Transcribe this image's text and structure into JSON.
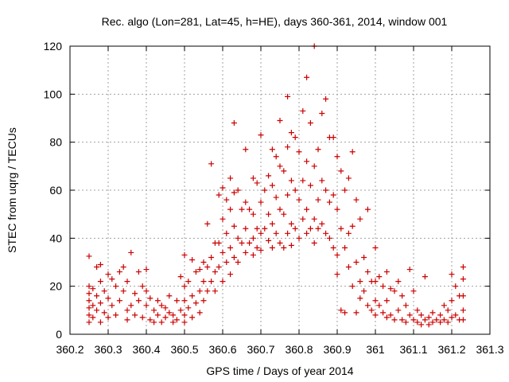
{
  "chart_data": {
    "type": "scatter",
    "title": "Rec. algo (Lon=281, Lat=45, h=HE), days 360-361, 2014, window 001",
    "xlabel": "GPS time / Days of year 2014",
    "ylabel": "STEC from uqrg / TECUs",
    "xlim": [
      360.2,
      361.3
    ],
    "ylim": [
      0,
      120
    ],
    "xticks": [
      360.2,
      360.3,
      360.4,
      360.5,
      360.6,
      360.7,
      360.8,
      360.9,
      361,
      361.1,
      361.2,
      361.3
    ],
    "xtick_labels": [
      "360.2",
      "360.3",
      "360.4",
      "360.5",
      "360.6",
      "360.7",
      "360.8",
      "360.9",
      "361",
      "361.1",
      "361.2",
      "361.3"
    ],
    "yticks": [
      0,
      20,
      40,
      60,
      80,
      100,
      120
    ],
    "ytick_labels": [
      "0",
      "20",
      "40",
      "60",
      "80",
      "100",
      "120"
    ],
    "grid": true,
    "legend": "none",
    "marker": "plus",
    "color": "#cc0000",
    "series": [
      {
        "points": [
          [
            360.25,
            32.5
          ],
          [
            360.25,
            20
          ],
          [
            360.25,
            17
          ],
          [
            360.25,
            14
          ],
          [
            360.25,
            11
          ],
          [
            360.25,
            8
          ],
          [
            360.25,
            5
          ],
          [
            360.26,
            19
          ],
          [
            360.26,
            12
          ],
          [
            360.26,
            7
          ],
          [
            360.27,
            28
          ],
          [
            360.27,
            16
          ],
          [
            360.27,
            10
          ],
          [
            360.28,
            29
          ],
          [
            360.28,
            22
          ],
          [
            360.28,
            13
          ],
          [
            360.28,
            5
          ],
          [
            360.29,
            18
          ],
          [
            360.29,
            9
          ],
          [
            360.3,
            25
          ],
          [
            360.3,
            15
          ],
          [
            360.3,
            7
          ],
          [
            360.31,
            23
          ],
          [
            360.31,
            12
          ],
          [
            360.32,
            20
          ],
          [
            360.32,
            8
          ],
          [
            360.33,
            26
          ],
          [
            360.33,
            14
          ],
          [
            360.34,
            28
          ],
          [
            360.34,
            18
          ],
          [
            360.35,
            22
          ],
          [
            360.35,
            10
          ],
          [
            360.35,
            6
          ],
          [
            360.36,
            34
          ],
          [
            360.36,
            12
          ],
          [
            360.37,
            17
          ],
          [
            360.37,
            8
          ],
          [
            360.38,
            26
          ],
          [
            360.38,
            14
          ],
          [
            360.39,
            20
          ],
          [
            360.39,
            7
          ],
          [
            360.4,
            27
          ],
          [
            360.4,
            18
          ],
          [
            360.4,
            12
          ],
          [
            360.41,
            15
          ],
          [
            360.41,
            6
          ],
          [
            360.42,
            10
          ],
          [
            360.42,
            5
          ],
          [
            360.43,
            14
          ],
          [
            360.43,
            8
          ],
          [
            360.44,
            12
          ],
          [
            360.44,
            5
          ],
          [
            360.45,
            11
          ],
          [
            360.45,
            7
          ],
          [
            360.46,
            16
          ],
          [
            360.46,
            9
          ],
          [
            360.47,
            8
          ],
          [
            360.47,
            5
          ],
          [
            360.48,
            14
          ],
          [
            360.48,
            6
          ],
          [
            360.49,
            24
          ],
          [
            360.49,
            10
          ],
          [
            360.5,
            33
          ],
          [
            360.5,
            20
          ],
          [
            360.5,
            14
          ],
          [
            360.5,
            8
          ],
          [
            360.5,
            5
          ],
          [
            360.51,
            22
          ],
          [
            360.51,
            11
          ],
          [
            360.52,
            31
          ],
          [
            360.52,
            16
          ],
          [
            360.52,
            7
          ],
          [
            360.53,
            26
          ],
          [
            360.53,
            13
          ],
          [
            360.54,
            27
          ],
          [
            360.54,
            18
          ],
          [
            360.54,
            9
          ],
          [
            360.55,
            30
          ],
          [
            360.55,
            22
          ],
          [
            360.55,
            14
          ],
          [
            360.56,
            46
          ],
          [
            360.56,
            28
          ],
          [
            360.56,
            18
          ],
          [
            360.57,
            71
          ],
          [
            360.57,
            32
          ],
          [
            360.57,
            22
          ],
          [
            360.58,
            38
          ],
          [
            360.58,
            26
          ],
          [
            360.58,
            18
          ],
          [
            360.59,
            58
          ],
          [
            360.59,
            38
          ],
          [
            360.59,
            28
          ],
          [
            360.6,
            61
          ],
          [
            360.6,
            48
          ],
          [
            360.6,
            34
          ],
          [
            360.6,
            22
          ],
          [
            360.61,
            56
          ],
          [
            360.61,
            42
          ],
          [
            360.61,
            30
          ],
          [
            360.62,
            65
          ],
          [
            360.62,
            52
          ],
          [
            360.62,
            36
          ],
          [
            360.62,
            25
          ],
          [
            360.63,
            88
          ],
          [
            360.63,
            59
          ],
          [
            360.63,
            45
          ],
          [
            360.63,
            32
          ],
          [
            360.64,
            60
          ],
          [
            360.64,
            40
          ],
          [
            360.64,
            30
          ],
          [
            360.65,
            52
          ],
          [
            360.65,
            38
          ],
          [
            360.66,
            77
          ],
          [
            360.66,
            55
          ],
          [
            360.66,
            44
          ],
          [
            360.66,
            34
          ],
          [
            360.67,
            52
          ],
          [
            360.67,
            38
          ],
          [
            360.68,
            65
          ],
          [
            360.68,
            50
          ],
          [
            360.68,
            40
          ],
          [
            360.68,
            33
          ],
          [
            360.69,
            63
          ],
          [
            360.69,
            44
          ],
          [
            360.69,
            36
          ],
          [
            360.7,
            83
          ],
          [
            360.7,
            55
          ],
          [
            360.7,
            42
          ],
          [
            360.7,
            35
          ],
          [
            360.71,
            60
          ],
          [
            360.71,
            44
          ],
          [
            360.72,
            66
          ],
          [
            360.72,
            50
          ],
          [
            360.72,
            39
          ],
          [
            360.73,
            77
          ],
          [
            360.73,
            62
          ],
          [
            360.73,
            46
          ],
          [
            360.73,
            36
          ],
          [
            360.74,
            74
          ],
          [
            360.74,
            57
          ],
          [
            360.74,
            42
          ],
          [
            360.75,
            89
          ],
          [
            360.75,
            70
          ],
          [
            360.75,
            52
          ],
          [
            360.75,
            38
          ],
          [
            360.76,
            68
          ],
          [
            360.76,
            50
          ],
          [
            360.76,
            36
          ],
          [
            360.77,
            99
          ],
          [
            360.77,
            78
          ],
          [
            360.77,
            58
          ],
          [
            360.77,
            42
          ],
          [
            360.78,
            84
          ],
          [
            360.78,
            64
          ],
          [
            360.78,
            46
          ],
          [
            360.78,
            37
          ],
          [
            360.79,
            82
          ],
          [
            360.79,
            60
          ],
          [
            360.79,
            44
          ],
          [
            360.8,
            76
          ],
          [
            360.8,
            56
          ],
          [
            360.8,
            40
          ],
          [
            360.81,
            93
          ],
          [
            360.81,
            64
          ],
          [
            360.81,
            48
          ],
          [
            360.82,
            107
          ],
          [
            360.82,
            72
          ],
          [
            360.82,
            52
          ],
          [
            360.82,
            42
          ],
          [
            360.83,
            88
          ],
          [
            360.83,
            62
          ],
          [
            360.83,
            44
          ],
          [
            360.84,
            120
          ],
          [
            360.84,
            70
          ],
          [
            360.84,
            48
          ],
          [
            360.84,
            38
          ],
          [
            360.85,
            77
          ],
          [
            360.85,
            56
          ],
          [
            360.85,
            44
          ],
          [
            360.86,
            92
          ],
          [
            360.86,
            64
          ],
          [
            360.86,
            46
          ],
          [
            360.87,
            98
          ],
          [
            360.87,
            60
          ],
          [
            360.87,
            42
          ],
          [
            360.88,
            82
          ],
          [
            360.88,
            55
          ],
          [
            360.88,
            40
          ],
          [
            360.89,
            82
          ],
          [
            360.89,
            58
          ],
          [
            360.89,
            36
          ],
          [
            360.9,
            74
          ],
          [
            360.9,
            52
          ],
          [
            360.9,
            33
          ],
          [
            360.9,
            25
          ],
          [
            360.91,
            68
          ],
          [
            360.91,
            44
          ],
          [
            360.91,
            10
          ],
          [
            360.92,
            60
          ],
          [
            360.92,
            36
          ],
          [
            360.92,
            9
          ],
          [
            360.93,
            65
          ],
          [
            360.93,
            42
          ],
          [
            360.93,
            28
          ],
          [
            360.94,
            76
          ],
          [
            360.94,
            45
          ],
          [
            360.94,
            20
          ],
          [
            360.95,
            56
          ],
          [
            360.95,
            30
          ],
          [
            360.95,
            9
          ],
          [
            360.96,
            48
          ],
          [
            360.96,
            22
          ],
          [
            360.96,
            15
          ],
          [
            360.97,
            32
          ],
          [
            360.97,
            18
          ],
          [
            360.98,
            52
          ],
          [
            360.98,
            26
          ],
          [
            360.98,
            12
          ],
          [
            360.99,
            22
          ],
          [
            360.99,
            10
          ],
          [
            361,
            36
          ],
          [
            361,
            22
          ],
          [
            361,
            14
          ],
          [
            361,
            8
          ],
          [
            361.01,
            24
          ],
          [
            361.01,
            12
          ],
          [
            361.02,
            20
          ],
          [
            361.02,
            9
          ],
          [
            361.03,
            26
          ],
          [
            361.03,
            14
          ],
          [
            361.03,
            7
          ],
          [
            361.04,
            19
          ],
          [
            361.04,
            8
          ],
          [
            361.05,
            18
          ],
          [
            361.05,
            6
          ],
          [
            361.06,
            22
          ],
          [
            361.06,
            10
          ],
          [
            361.07,
            16
          ],
          [
            361.07,
            6
          ],
          [
            361.08,
            12
          ],
          [
            361.08,
            5
          ],
          [
            361.09,
            27
          ],
          [
            361.09,
            8
          ],
          [
            361.1,
            18
          ],
          [
            361.1,
            6
          ],
          [
            361.11,
            10
          ],
          [
            361.11,
            5
          ],
          [
            361.12,
            8
          ],
          [
            361.12,
            4
          ],
          [
            361.13,
            24
          ],
          [
            361.13,
            6
          ],
          [
            361.14,
            7
          ],
          [
            361.14,
            4
          ],
          [
            361.15,
            9
          ],
          [
            361.15,
            5
          ],
          [
            361.16,
            6
          ],
          [
            361.17,
            8
          ],
          [
            361.17,
            5
          ],
          [
            361.18,
            12
          ],
          [
            361.18,
            6
          ],
          [
            361.19,
            10
          ],
          [
            361.19,
            5
          ],
          [
            361.2,
            25
          ],
          [
            361.2,
            14
          ],
          [
            361.2,
            7
          ],
          [
            361.21,
            20
          ],
          [
            361.21,
            8
          ],
          [
            361.22,
            16
          ],
          [
            361.22,
            6
          ],
          [
            361.23,
            28
          ],
          [
            361.23,
            23
          ],
          [
            361.23,
            16
          ],
          [
            361.23,
            10
          ],
          [
            361.23,
            6
          ]
        ]
      }
    ]
  }
}
